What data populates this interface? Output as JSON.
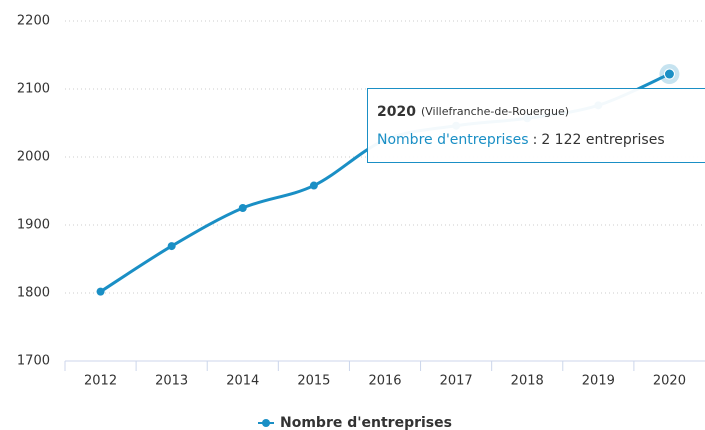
{
  "chart_data": {
    "type": "line",
    "categories": [
      "2012",
      "2013",
      "2014",
      "2015",
      "2016",
      "2017",
      "2018",
      "2019",
      "2020"
    ],
    "series": [
      {
        "name": "Nombre d'entreprises",
        "color": "#1a8fc5",
        "values": [
          1802,
          1869,
          1925,
          1958,
          2025,
          2046,
          2057,
          2076,
          2122
        ],
        "value_labels": [
          null,
          null,
          null,
          null,
          null,
          null,
          null,
          null,
          "2 122 entreprises"
        ]
      }
    ],
    "ylim": [
      1700,
      2200
    ],
    "yticks": [
      1700,
      1800,
      1900,
      2000,
      2100,
      2200
    ],
    "grid": true,
    "legend": "bottom",
    "tooltip": {
      "index": 8,
      "place": "(Villefranche-de-Rouergue)",
      "separator": ":"
    }
  }
}
